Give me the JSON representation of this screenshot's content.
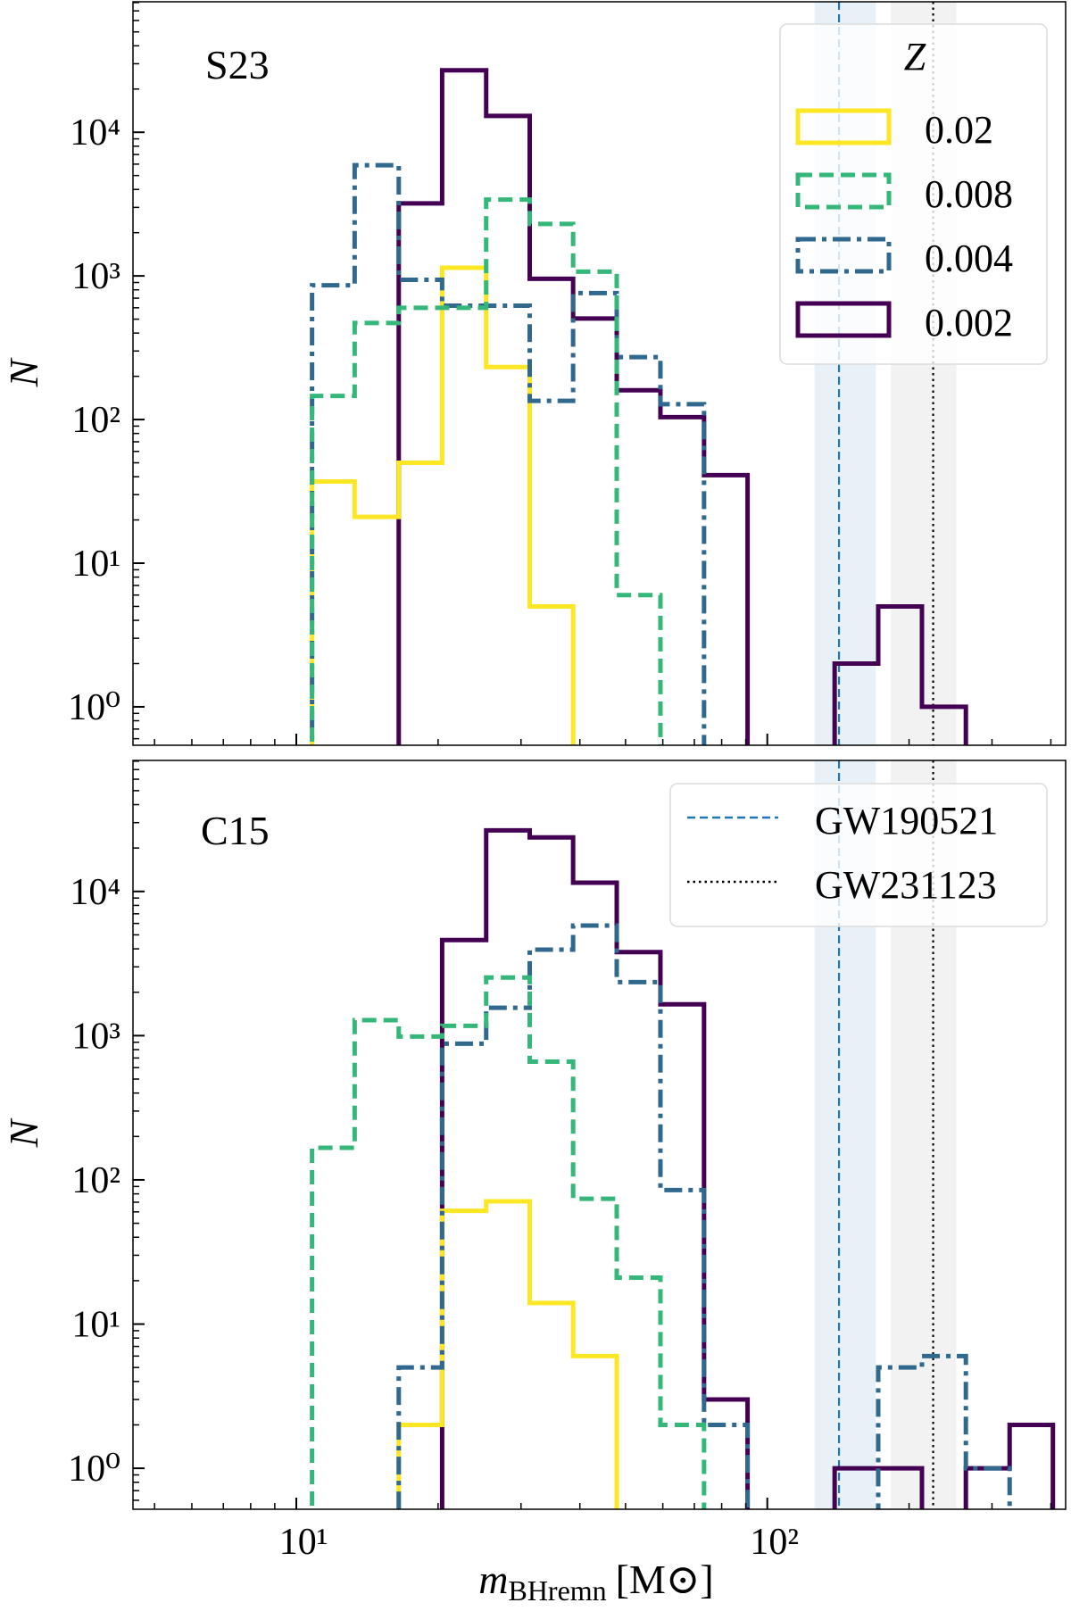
{
  "chart_data": [
    {
      "type": "bar",
      "histtype": "step",
      "panel_label": "S23",
      "xscale": "log",
      "yscale": "log",
      "xlim": [
        4.5,
        430
      ],
      "ylim": [
        0.54,
        81000
      ],
      "ylabel": "N",
      "xtick_labels": [],
      "ytick_values": [
        1,
        10,
        100,
        1000,
        10000
      ],
      "ytick_labels": [
        "10⁰",
        "10¹",
        "10²",
        "10³",
        "10⁴"
      ],
      "grid": false,
      "bin_edges": [
        10.8,
        13.3,
        16.5,
        20.4,
        25.3,
        31.3,
        38.7,
        47.9,
        59.3,
        73.4,
        90.8,
        112,
        139,
        172,
        213,
        264,
        327,
        404
      ],
      "legend": {
        "title": "Z",
        "placement": "top-right"
      },
      "series": [
        {
          "name": "0.002",
          "color": "#440154",
          "style": "solid",
          "counts": [
            0,
            0,
            3200,
            27000,
            13000,
            955,
            505,
            160,
            104,
            41,
            0,
            0,
            2,
            5,
            1,
            0,
            0
          ]
        },
        {
          "name": "0.02",
          "color": "#fde725",
          "style": "solid",
          "counts": [
            37,
            21,
            50,
            1140,
            232,
            5,
            0,
            0,
            0,
            0,
            0,
            0,
            0,
            0,
            0,
            0,
            0
          ]
        },
        {
          "name": "0.004",
          "color": "#31688e",
          "style": "dashdot",
          "counts": [
            860,
            5900,
            940,
            620,
            620,
            135,
            760,
            272,
            128,
            0,
            0,
            0,
            0,
            0,
            0,
            0,
            0
          ]
        },
        {
          "name": "0.008",
          "color": "#35b779",
          "style": "dashed",
          "counts": [
            146,
            470,
            600,
            600,
            3400,
            2300,
            1070,
            6,
            0,
            0,
            0,
            0,
            0,
            0,
            0,
            0,
            0
          ]
        }
      ],
      "legend_order": [
        "0.02",
        "0.008",
        "0.004",
        "0.002"
      ],
      "reference_events": [
        {
          "name": "GW190521",
          "value": 142,
          "band": [
            126,
            170
          ],
          "color": "#1f77b4",
          "band_color": "#e8f0f8",
          "style": "dashed"
        },
        {
          "name": "GW231123",
          "value": 225,
          "band": [
            183,
            252
          ],
          "color": "#000000",
          "band_color": "#f2f2f2",
          "style": "dotted"
        }
      ]
    },
    {
      "type": "bar",
      "histtype": "step",
      "panel_label": "C15",
      "xscale": "log",
      "yscale": "log",
      "xlim": [
        4.5,
        430
      ],
      "ylim": [
        0.52,
        81000
      ],
      "ylabel": "N",
      "xlabel": {
        "symbol": "m",
        "subscript": "BHremn",
        "unit": "[M⊙]"
      },
      "xtick_values": [
        10,
        100
      ],
      "xtick_labels": [
        "10¹",
        "10²"
      ],
      "ytick_values": [
        1,
        10,
        100,
        1000,
        10000
      ],
      "ytick_labels": [
        "10⁰",
        "10¹",
        "10²",
        "10³",
        "10⁴"
      ],
      "grid": false,
      "bin_edges": [
        10.8,
        13.3,
        16.5,
        20.4,
        25.3,
        31.3,
        38.7,
        47.9,
        59.3,
        73.4,
        90.8,
        112,
        139,
        172,
        213,
        264,
        327,
        404
      ],
      "legend": {
        "placement": "top-right",
        "entries": [
          "GW190521",
          "GW231123"
        ]
      },
      "series": [
        {
          "name": "0.002",
          "color": "#440154",
          "style": "solid",
          "counts": [
            0,
            0,
            0,
            4600,
            26500,
            23700,
            11500,
            3800,
            1650,
            3,
            0,
            0,
            1,
            1,
            0,
            1,
            2
          ]
        },
        {
          "name": "0.02",
          "color": "#fde725",
          "style": "solid",
          "counts": [
            0,
            0,
            2,
            61,
            71,
            14,
            6,
            0,
            0,
            0,
            0,
            0,
            0,
            0,
            0,
            0,
            0
          ]
        },
        {
          "name": "0.004",
          "color": "#31688e",
          "style": "dashdot",
          "counts": [
            0,
            0,
            5,
            880,
            1560,
            3950,
            5800,
            2350,
            85,
            2,
            0,
            0,
            0,
            5,
            6,
            1,
            0
          ]
        },
        {
          "name": "0.008",
          "color": "#35b779",
          "style": "dashed",
          "counts": [
            167,
            1280,
            985,
            1170,
            2530,
            660,
            74,
            21,
            2,
            0,
            0,
            0,
            0,
            0,
            0,
            0,
            0
          ]
        }
      ],
      "reference_events": [
        {
          "name": "GW190521",
          "value": 142,
          "band": [
            126,
            170
          ],
          "color": "#1f77b4",
          "band_color": "#e8f0f8",
          "style": "dashed"
        },
        {
          "name": "GW231123",
          "value": 225,
          "band": [
            183,
            252
          ],
          "color": "#000000",
          "band_color": "#f2f2f2",
          "style": "dotted"
        }
      ]
    }
  ]
}
